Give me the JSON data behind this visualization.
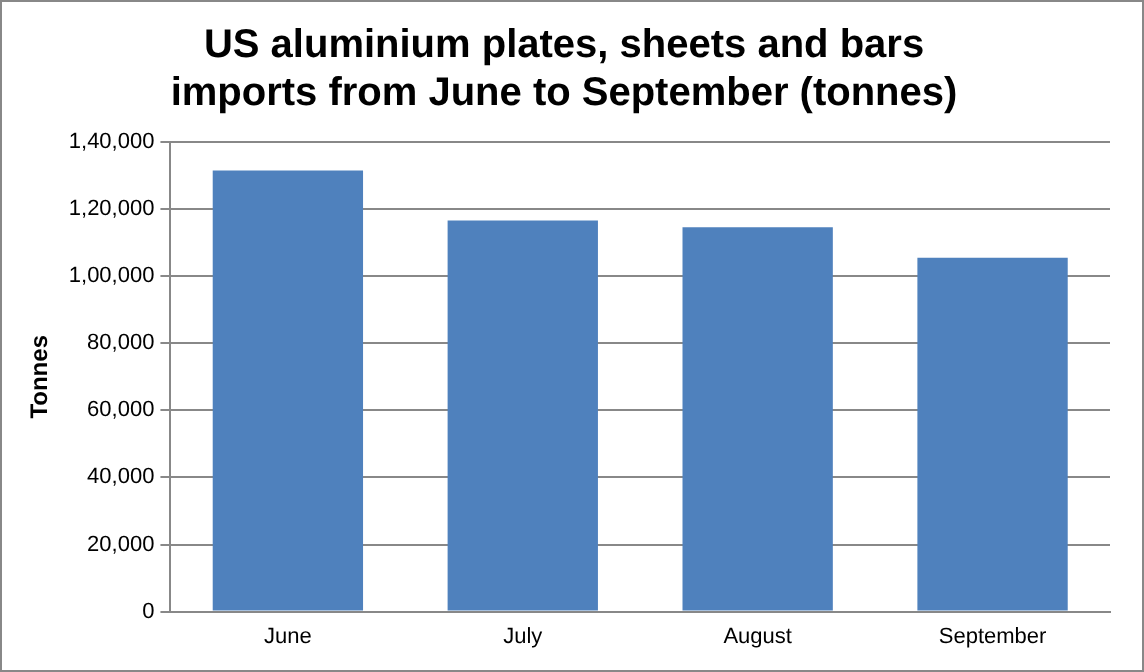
{
  "chart_data": {
    "type": "bar",
    "title": "US aluminium plates, sheets and bars imports from June to September (tonnes)",
    "ylabel": "Tonnes",
    "categories": [
      "June",
      "July",
      "August",
      "September"
    ],
    "values": [
      131500,
      116600,
      114600,
      105500
    ],
    "color": "#4f81bd",
    "ylim": [
      0,
      140000
    ],
    "yticks": [
      0,
      {
        "value": 20000,
        "label": "20,000"
      },
      {
        "value": 40000,
        "label": "40,000"
      },
      {
        "value": 60000,
        "label": "60,000"
      },
      {
        "value": 80000,
        "label": "80,000"
      },
      {
        "value": 100000,
        "label": "1,00,000"
      },
      {
        "value": 120000,
        "label": "1,20,000"
      },
      {
        "value": 140000,
        "label": "1,40,000"
      }
    ],
    "grid": "y",
    "legend": false
  }
}
